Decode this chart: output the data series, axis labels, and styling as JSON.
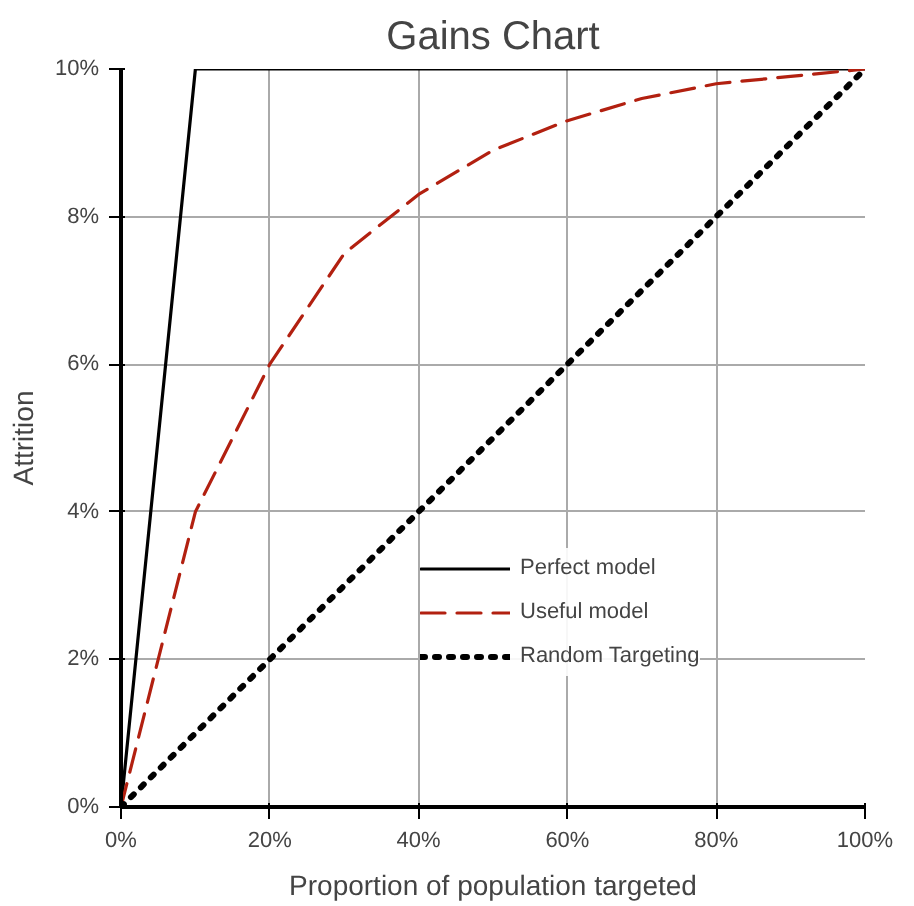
{
  "chart_data": {
    "type": "line",
    "title": "Gains Chart",
    "xlabel": "Proportion of population targeted",
    "ylabel": "Attrition",
    "xlim": [
      0,
      100
    ],
    "ylim": [
      0,
      10
    ],
    "xticks": [
      {
        "value": 0,
        "label": "0%"
      },
      {
        "value": 20,
        "label": "20%"
      },
      {
        "value": 40,
        "label": "40%"
      },
      {
        "value": 60,
        "label": "60%"
      },
      {
        "value": 80,
        "label": "80%"
      },
      {
        "value": 100,
        "label": "100%"
      }
    ],
    "yticks": [
      {
        "value": 0,
        "label": "0%"
      },
      {
        "value": 2,
        "label": "2%"
      },
      {
        "value": 4,
        "label": "4%"
      },
      {
        "value": 6,
        "label": "6%"
      },
      {
        "value": 8,
        "label": "8%"
      },
      {
        "value": 10,
        "label": "10%"
      }
    ],
    "grid": true,
    "legend": "bottom right",
    "marker": "none",
    "series": [
      {
        "name": "Perfect model",
        "color": "#000000",
        "line_style": "solid",
        "x": [
          0,
          10,
          100
        ],
        "values": [
          0,
          10,
          10
        ]
      },
      {
        "name": "Useful model",
        "color": "#b22010",
        "line_style": "dashed",
        "x": [
          0,
          10,
          20,
          30,
          40,
          50,
          60,
          70,
          80,
          90,
          100
        ],
        "values": [
          0,
          4,
          6,
          7.5,
          8.3,
          8.9,
          9.3,
          9.6,
          9.8,
          9.9,
          10
        ]
      },
      {
        "name": "Random Targeting",
        "color": "#000000",
        "line_style": "dotted",
        "x": [
          0,
          100
        ],
        "values": [
          0,
          10
        ]
      }
    ]
  }
}
